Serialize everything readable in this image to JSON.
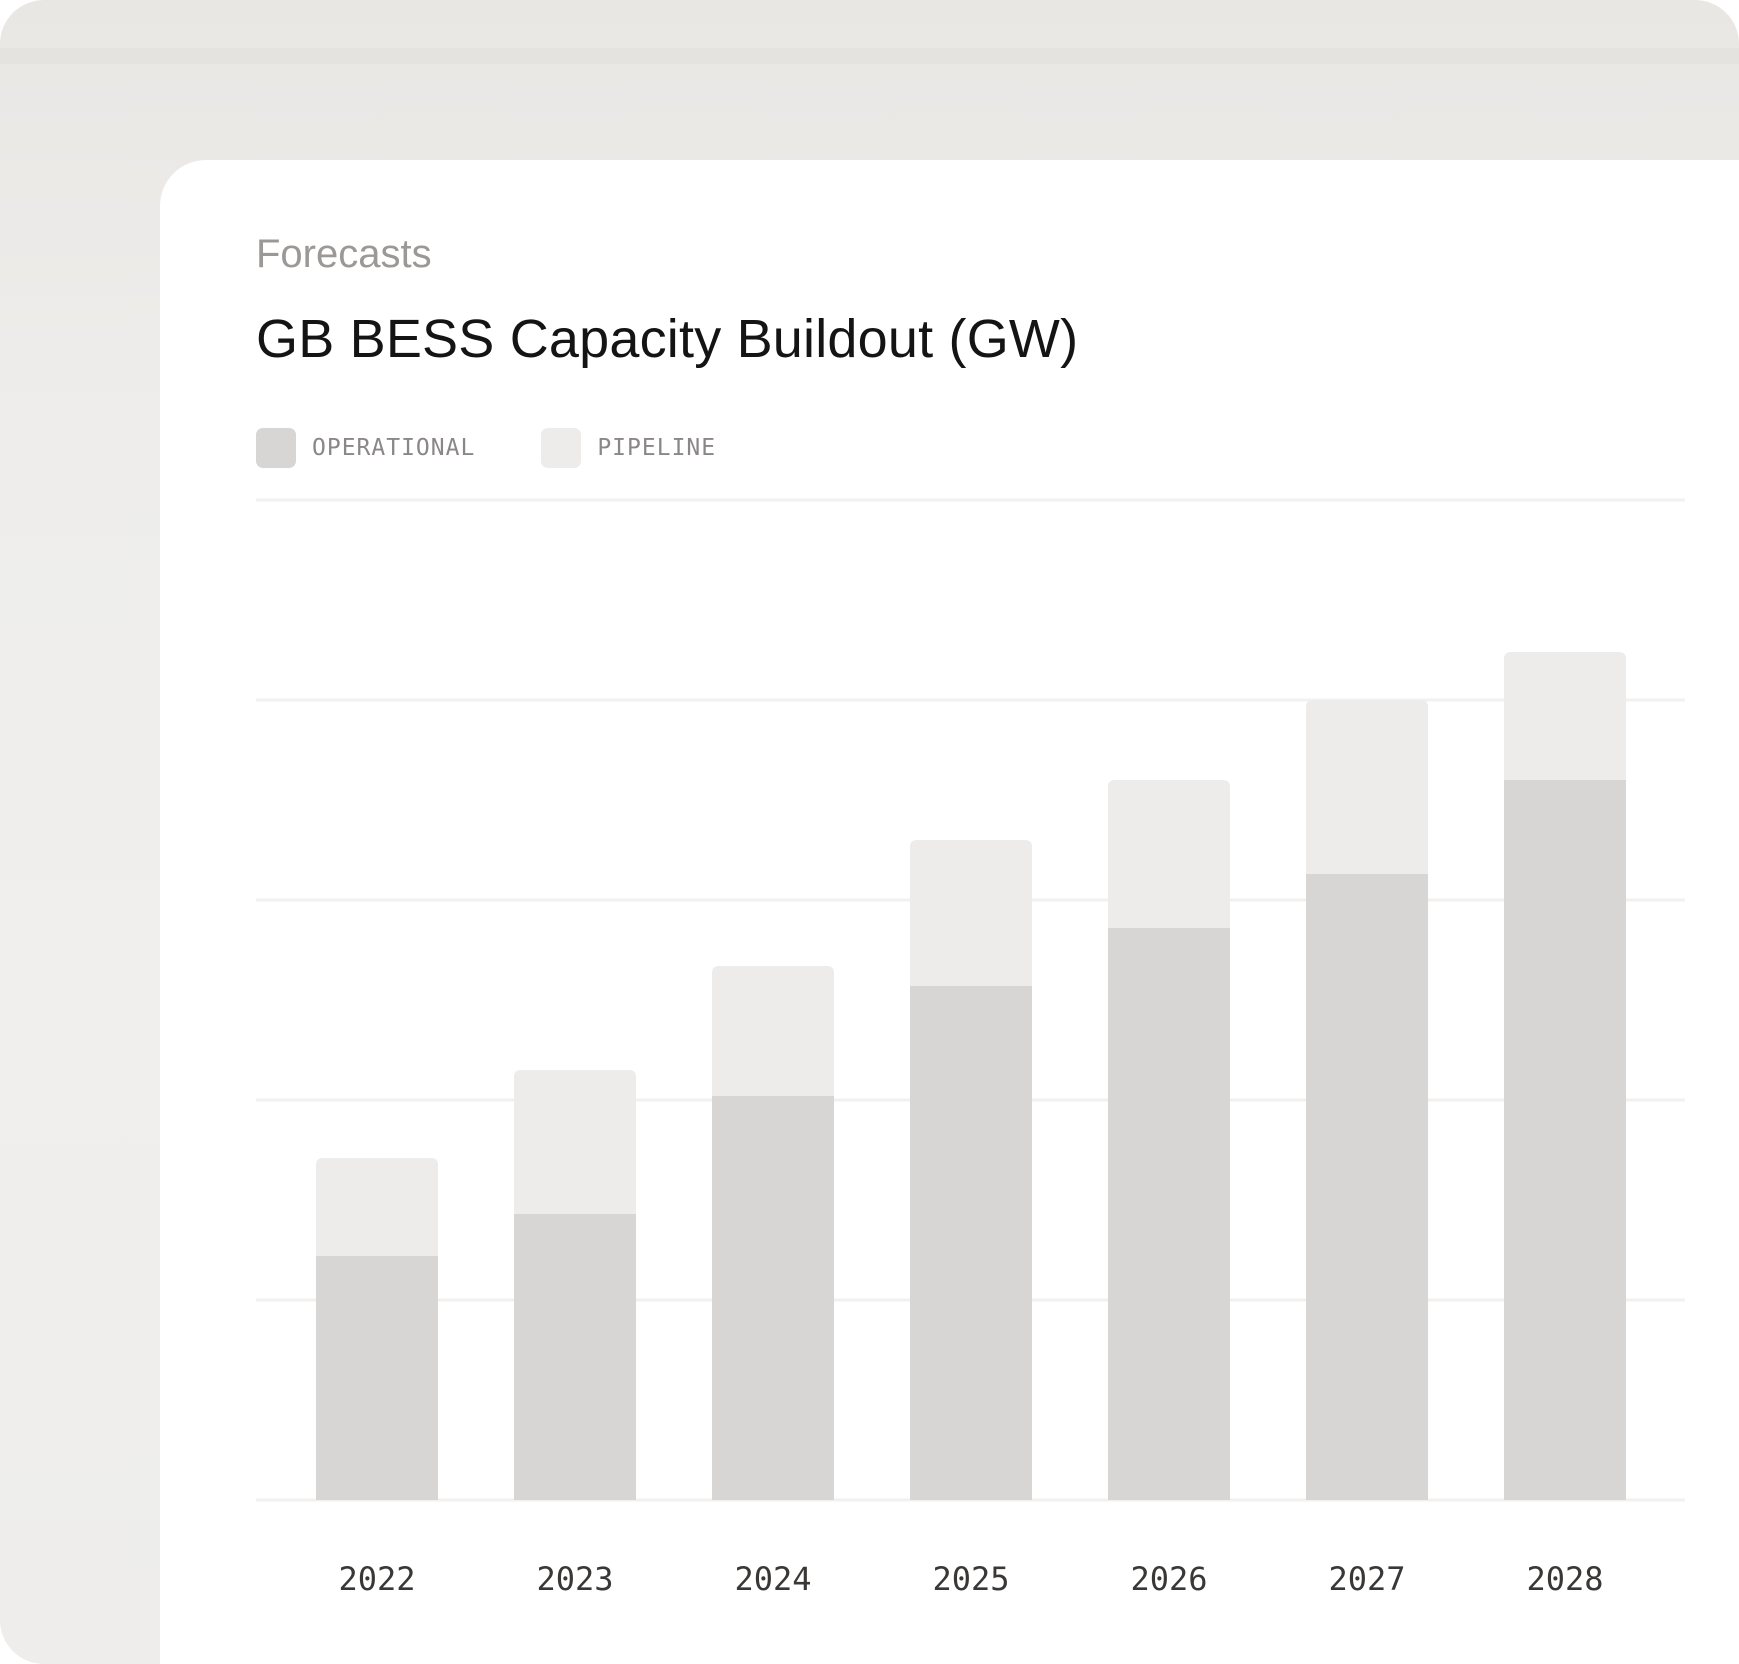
{
  "header": {
    "eyebrow": "Forecasts",
    "title": "GB BESS Capacity Buildout (GW)"
  },
  "legend": [
    {
      "label": "OPERATIONAL",
      "color": "#d8d6d4"
    },
    {
      "label": "PIPELINE",
      "color": "#eeecea"
    }
  ],
  "chart_data": {
    "type": "bar",
    "stacked": true,
    "title": "GB BESS Capacity Buildout (GW)",
    "categories": [
      "2022",
      "2023",
      "2024",
      "2025",
      "2026",
      "2027",
      "2028"
    ],
    "series": [
      {
        "name": "OPERATIONAL",
        "color": "#d8d6d4",
        "values": [
          1.22,
          1.43,
          2.02,
          2.57,
          2.86,
          3.13,
          3.6
        ]
      },
      {
        "name": "PIPELINE",
        "color": "#eeecea",
        "values": [
          0.49,
          0.72,
          0.65,
          0.73,
          0.74,
          0.87,
          0.64
        ]
      }
    ],
    "ylim": [
      0,
      5
    ],
    "grid": true,
    "legend_position": "top-left"
  }
}
